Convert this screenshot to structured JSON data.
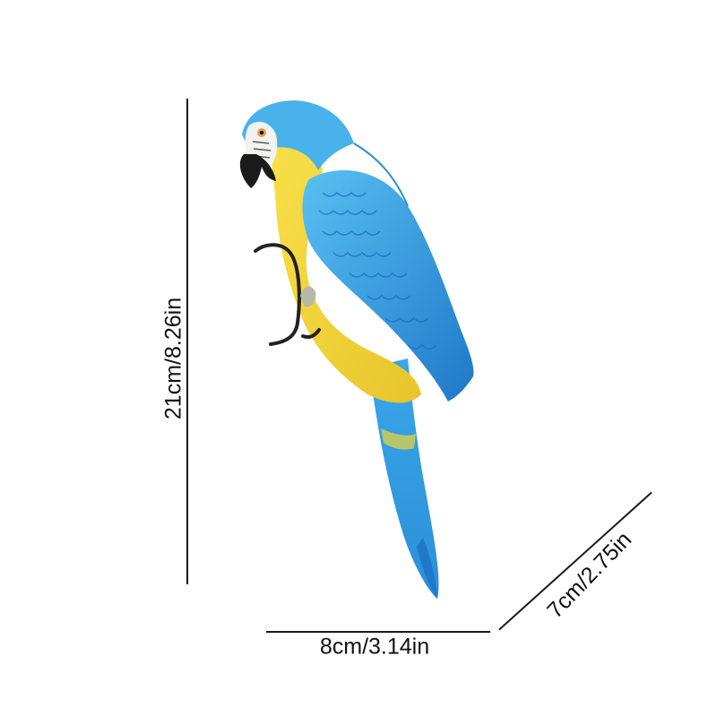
{
  "dimensions": {
    "height_label": "21cm/8.26in",
    "width_label": "8cm/3.14in",
    "depth_label": "7cm/2.75in"
  },
  "colors": {
    "background": "#ffffff",
    "line": "#1a1a1a",
    "blue": "#3aa6e8",
    "blue_dark": "#1f78c8",
    "yellow": "#f6d83a",
    "beak": "#1b1b1b",
    "face": "#f2f2ee"
  }
}
